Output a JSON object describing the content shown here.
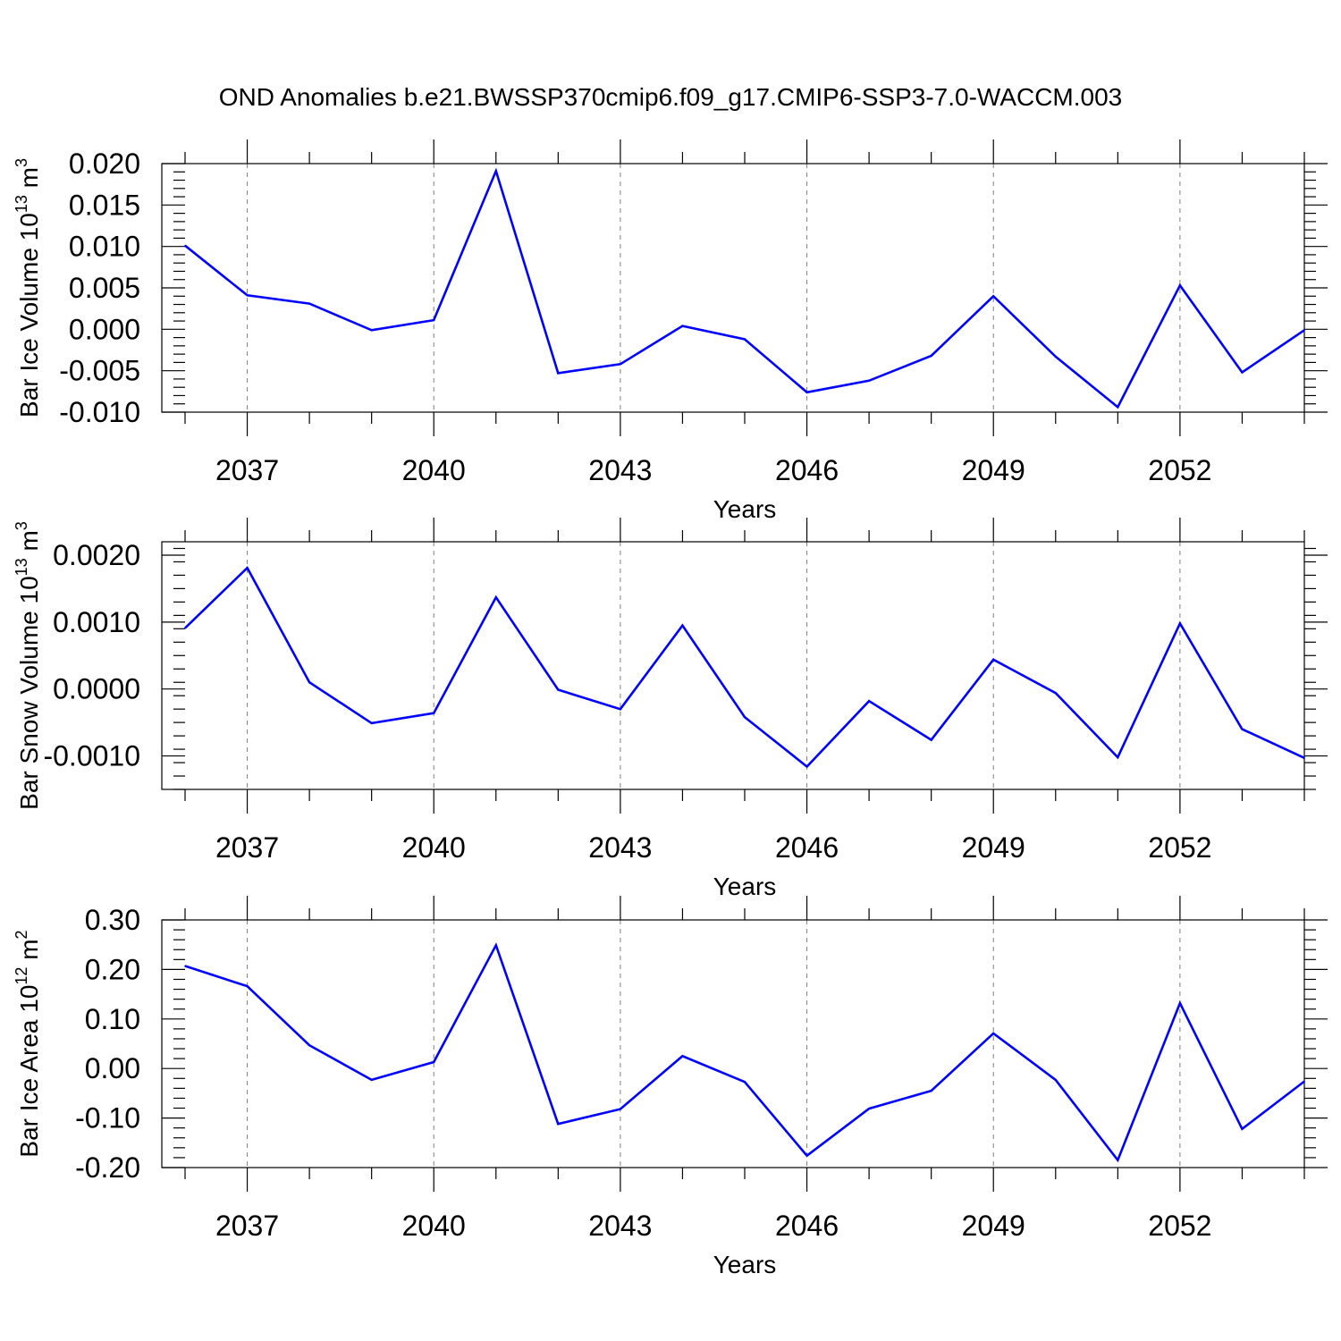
{
  "title": "OND Anomalies b.e21.BWSSP370cmip6.f09_g17.CMIP6-SSP3-7.0-WACCM.003",
  "colors": {
    "line": "#0000ff",
    "grid": "#7f7f7f",
    "axis": "#000000"
  },
  "chart_data": [
    {
      "type": "line",
      "xlabel": "Years",
      "ylabel": "Bar Ice Volume 10",
      "ylabel_unit_exp": "13",
      "ylabel_unit": "m",
      "ylabel_unit_pow": "3",
      "x": [
        2036,
        2037,
        2038,
        2039,
        2040,
        2041,
        2042,
        2043,
        2044,
        2045,
        2046,
        2047,
        2048,
        2049,
        2050,
        2051,
        2052,
        2053,
        2054
      ],
      "xlim": [
        2036,
        2054
      ],
      "xticks": [
        "2037",
        "2040",
        "2043",
        "2046",
        "2049",
        "2052"
      ],
      "ylim": [
        -0.01,
        0.02
      ],
      "yticks": [
        "-0.010",
        "-0.005",
        "0.000",
        "0.005",
        "0.010",
        "0.015",
        "0.020"
      ],
      "series": [
        {
          "values": [
            0.0101,
            0.0041,
            0.0031,
            -0.0001,
            0.0011,
            0.0191,
            -0.0053,
            -0.0042,
            0.0004,
            -0.0012,
            -0.0076,
            -0.0062,
            -0.0032,
            0.004,
            -0.0033,
            -0.0094,
            0.0053,
            -0.0052,
            -0.0001
          ]
        }
      ],
      "grid": "dashed vertical at major x ticks"
    },
    {
      "type": "line",
      "xlabel": "Years",
      "ylabel": "Bar Snow Volume 10",
      "ylabel_unit_exp": "13",
      "ylabel_unit": "m",
      "ylabel_unit_pow": "3",
      "x": [
        2036,
        2037,
        2038,
        2039,
        2040,
        2041,
        2042,
        2043,
        2044,
        2045,
        2046,
        2047,
        2048,
        2049,
        2050,
        2051,
        2052,
        2053,
        2054
      ],
      "xlim": [
        2036,
        2054
      ],
      "xticks": [
        "2037",
        "2040",
        "2043",
        "2046",
        "2049",
        "2052"
      ],
      "ylim": [
        -0.0015,
        0.0022
      ],
      "yticks": [
        "-0.0010",
        "0.0000",
        "0.0010",
        "0.0020"
      ],
      "series": [
        {
          "values": [
            0.00091,
            0.00181,
            0.0001,
            -0.00051,
            -0.00036,
            0.00137,
            -1e-05,
            -0.0003,
            0.00095,
            -0.00042,
            -0.00116,
            -0.00018,
            -0.00076,
            0.00044,
            -6e-05,
            -0.00102,
            0.00098,
            -0.0006,
            -0.00103
          ]
        }
      ],
      "grid": "dashed vertical at major x ticks"
    },
    {
      "type": "line",
      "xlabel": "Years",
      "ylabel": "Bar Ice Area 10",
      "ylabel_unit_exp": "12",
      "ylabel_unit": "m",
      "ylabel_unit_pow": "2",
      "x": [
        2036,
        2037,
        2038,
        2039,
        2040,
        2041,
        2042,
        2043,
        2044,
        2045,
        2046,
        2047,
        2048,
        2049,
        2050,
        2051,
        2052,
        2053,
        2054
      ],
      "xlim": [
        2036,
        2054
      ],
      "xticks": [
        "2037",
        "2040",
        "2043",
        "2046",
        "2049",
        "2052"
      ],
      "ylim": [
        -0.2,
        0.3
      ],
      "yticks": [
        "-0.20",
        "-0.10",
        "0.00",
        "0.10",
        "0.20",
        "0.30"
      ],
      "series": [
        {
          "values": [
            0.207,
            0.166,
            0.047,
            -0.023,
            0.013,
            0.249,
            -0.112,
            -0.082,
            0.025,
            -0.027,
            -0.176,
            -0.081,
            -0.045,
            0.071,
            -0.023,
            -0.185,
            0.132,
            -0.122,
            -0.026
          ]
        }
      ],
      "grid": "dashed vertical at major x ticks"
    }
  ]
}
